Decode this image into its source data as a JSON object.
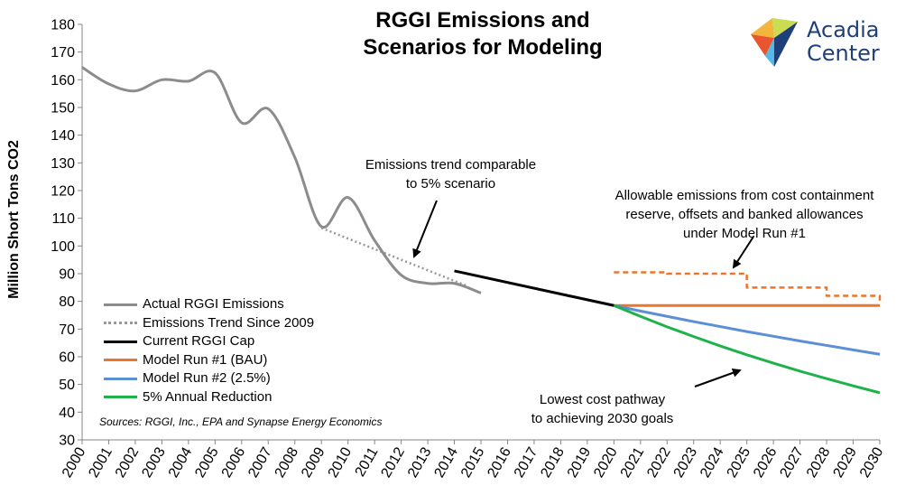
{
  "chart_data": {
    "type": "line",
    "title_lines": [
      "RGGI Emissions and",
      "Scenarios for Modeling"
    ],
    "ylabel": "Million Short Tons CO2",
    "xlabel": "",
    "ylim": [
      30,
      180
    ],
    "y_ticks": [
      30,
      40,
      50,
      60,
      70,
      80,
      90,
      100,
      110,
      120,
      130,
      140,
      150,
      160,
      170,
      180
    ],
    "x_ticks": [
      "2000",
      "2001",
      "2002",
      "2003",
      "2004",
      "2005",
      "2006",
      "2007",
      "2008",
      "2009",
      "2010",
      "2011",
      "2012",
      "2013",
      "2014",
      "2015",
      "2016",
      "2017",
      "2018",
      "2019",
      "2020",
      "2021",
      "2022",
      "2023",
      "2024",
      "2025",
      "2026",
      "2027",
      "2028",
      "2029",
      "2030"
    ],
    "series": [
      {
        "key": "actual",
        "name": "Actual RGGI Emissions",
        "color": "#8c8c8c",
        "style": "solid",
        "smooth": true,
        "x": [
          2000,
          2001,
          2002,
          2003,
          2004,
          2005,
          2006,
          2007,
          2008,
          2009,
          2010,
          2011,
          2012,
          2013,
          2014,
          2015
        ],
        "values": [
          164.5,
          158.5,
          156,
          160,
          159.5,
          162.5,
          144.5,
          149.5,
          132,
          107,
          117.5,
          102,
          89.5,
          86.5,
          86.5,
          83
        ]
      },
      {
        "key": "trend",
        "name": "Emissions Trend Since 2009",
        "color": "#999999",
        "style": "dotted",
        "smooth": false,
        "x": [
          2009,
          2014.5
        ],
        "values": [
          106.5,
          85.5
        ]
      },
      {
        "key": "cap",
        "name": "Current RGGI Cap",
        "color": "#000000",
        "style": "solid",
        "smooth": false,
        "x": [
          2014,
          2020
        ],
        "values": [
          91,
          78.5
        ]
      },
      {
        "key": "run1",
        "name": "Model Run #1 (BAU)",
        "color": "#e8762c",
        "style": "solid",
        "smooth": false,
        "x": [
          2020,
          2030
        ],
        "values": [
          78.5,
          78.5
        ]
      },
      {
        "key": "run2",
        "name": "Model Run #2 (2.5%)",
        "color": "#5b8fd6",
        "style": "solid",
        "smooth": false,
        "x": [
          2020,
          2021,
          2022,
          2023,
          2024,
          2025,
          2026,
          2027,
          2028,
          2029,
          2030
        ],
        "values": [
          78.5,
          76.5,
          74.6,
          72.7,
          70.9,
          69.1,
          67.4,
          65.7,
          64.1,
          62.5,
          60.9
        ]
      },
      {
        "key": "red5",
        "name": "5% Annual Reduction",
        "color": "#1fb24b",
        "style": "solid",
        "smooth": false,
        "x": [
          2020,
          2021,
          2022,
          2023,
          2024,
          2025,
          2026,
          2027,
          2028,
          2029,
          2030
        ],
        "values": [
          78.5,
          74.6,
          70.8,
          67.3,
          63.9,
          60.7,
          57.7,
          54.8,
          52.1,
          49.5,
          47.0
        ]
      },
      {
        "key": "allow",
        "name": "Allowable emissions",
        "color": "#e8762c",
        "style": "dashed",
        "smooth": false,
        "step": true,
        "x": [
          2020,
          2021,
          2022,
          2023,
          2024,
          2025,
          2026,
          2027,
          2028,
          2029,
          2030
        ],
        "values": [
          90.5,
          90.5,
          90,
          90,
          90,
          85,
          85,
          85,
          82,
          82,
          80
        ]
      }
    ],
    "legend_order": [
      "actual",
      "trend",
      "cap",
      "run1",
      "run2",
      "red5"
    ],
    "annotations": {
      "trend_note": [
        "Emissions trend comparable",
        "to 5% scenario"
      ],
      "allow_note": [
        "Allowable emissions from cost containment",
        "reserve, offsets and banked allowances",
        "under Model Run #1"
      ],
      "lowest_note": [
        "Lowest cost pathway",
        "to achieving 2030 goals"
      ]
    },
    "sources": "Sources: RGGI, Inc., EPA and Synapse Energy Economics"
  },
  "logo": {
    "line1": "Acadia",
    "line2": "Center"
  }
}
